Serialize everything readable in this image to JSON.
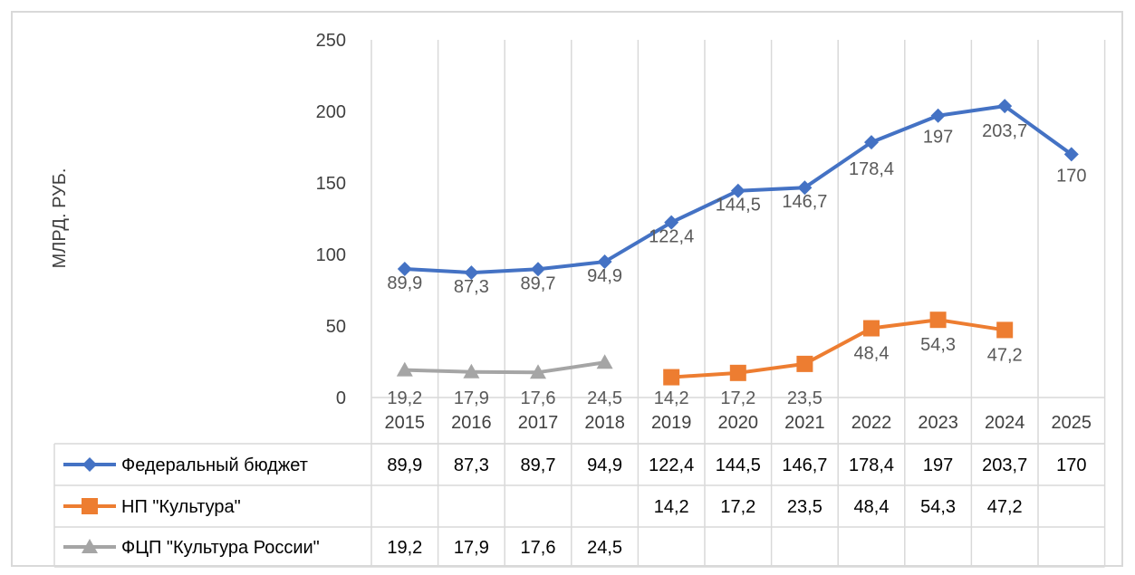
{
  "chart_data": {
    "type": "line",
    "ylabel": "МЛРД. РУБ.",
    "ylim": [
      0,
      250
    ],
    "yticks": [
      "0",
      "50",
      "100",
      "150",
      "200",
      "250"
    ],
    "categories": [
      "2015",
      "2016",
      "2017",
      "2018",
      "2019",
      "2020",
      "2021",
      "2022",
      "2023",
      "2024",
      "2025"
    ],
    "grid": true,
    "legend": "table",
    "series": [
      {
        "name": "Федеральный бюджет",
        "color": "#4472C4",
        "marker": "diamond",
        "values": [
          89.9,
          87.3,
          89.7,
          94.9,
          122.4,
          144.5,
          146.7,
          178.4,
          197,
          203.7,
          170
        ],
        "labels": [
          "89,9",
          "87,3",
          "89,7",
          "94,9",
          "122,4",
          "144,5",
          "146,7",
          "178,4",
          "197",
          "203,7",
          "170"
        ]
      },
      {
        "name": "НП \"Культура\"",
        "color": "#ED7D31",
        "marker": "square",
        "values": [
          null,
          null,
          null,
          null,
          14.2,
          17.2,
          23.5,
          48.4,
          54.3,
          47.2,
          null
        ],
        "labels": [
          "",
          "",
          "",
          "",
          "14,2",
          "17,2",
          "23,5",
          "48,4",
          "54,3",
          "47,2",
          ""
        ]
      },
      {
        "name": "ФЦП \"Культура России\"",
        "color": "#A5A5A5",
        "marker": "triangle",
        "values": [
          19.2,
          17.9,
          17.6,
          24.5,
          null,
          null,
          null,
          null,
          null,
          null,
          null
        ],
        "labels": [
          "19,2",
          "17,9",
          "17,6",
          "24,5",
          "",
          "",
          "",
          "",
          "",
          "",
          ""
        ]
      }
    ]
  }
}
